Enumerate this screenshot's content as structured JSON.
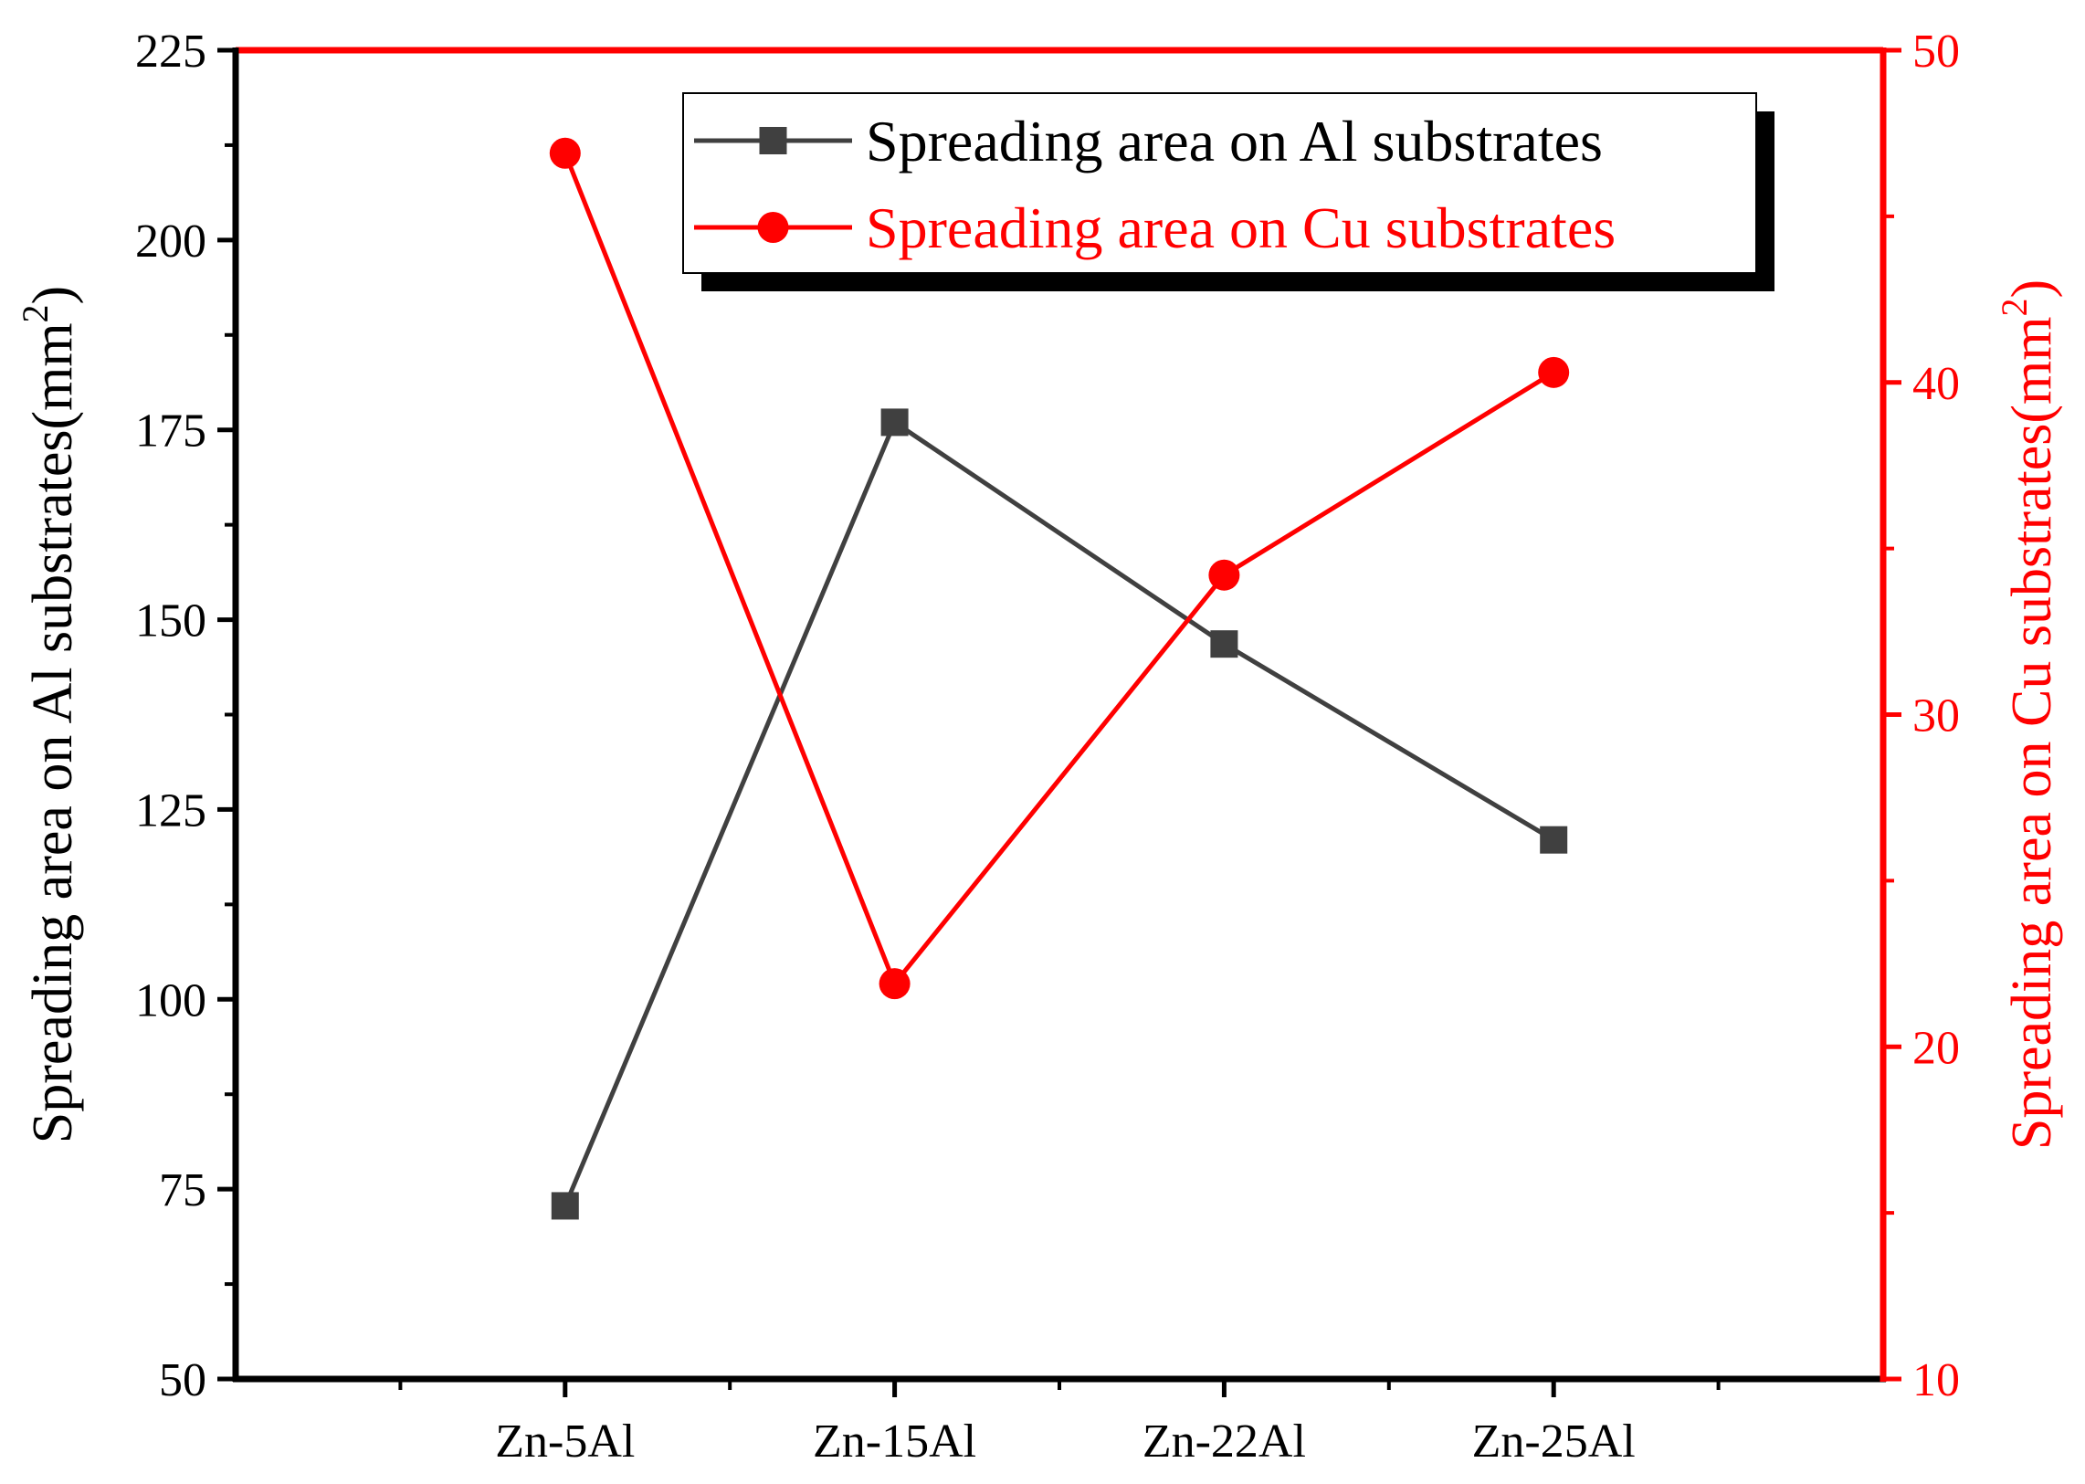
{
  "chart_data": {
    "type": "line",
    "categories": [
      "Zn-5Al",
      "Zn-15Al",
      "Zn-22Al",
      "Zn-25Al"
    ],
    "series": [
      {
        "name": "Spreading area on Al substrates",
        "axis": "left",
        "marker": "square",
        "color": "#404040",
        "values": [
          72.8,
          176,
          146.8,
          121
        ]
      },
      {
        "name": "Spreading area on Cu substrates",
        "axis": "right",
        "marker": "circle",
        "color": "#ff0000",
        "values": [
          46.9,
          21.9,
          34.2,
          40.3
        ]
      }
    ],
    "yleft": {
      "label": "Spreading area on Al substrates(mm",
      "sup": "2",
      "label_end": ")",
      "range": [
        50,
        225
      ],
      "ticks": [
        "50",
        "75",
        "100",
        "125",
        "150",
        "175",
        "200",
        "225"
      ],
      "color": "#000000"
    },
    "yright": {
      "label": "Spreading area on Cu substrates(mm",
      "sup": "2",
      "label_end": ")",
      "range": [
        10,
        50
      ],
      "ticks": [
        "10",
        "20",
        "30",
        "40",
        "50"
      ],
      "color": "#ff0000"
    },
    "legend_position": "top-right",
    "grid": false
  }
}
